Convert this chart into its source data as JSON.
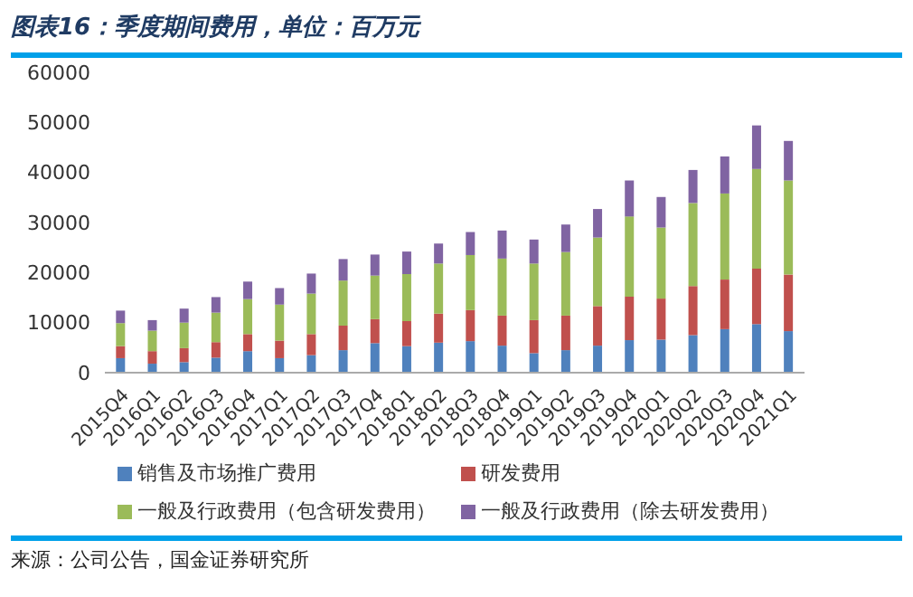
{
  "chart_data": {
    "type": "bar",
    "title": "图表16：季度期间费用，单位：百万元",
    "stacked": true,
    "legend": "bottom",
    "grid": false,
    "categories": [
      "2015Q4",
      "2016Q1",
      "2016Q2",
      "2016Q3",
      "2016Q4",
      "2017Q1",
      "2017Q2",
      "2017Q3",
      "2017Q4",
      "2018Q1",
      "2018Q2",
      "2018Q3",
      "2018Q4",
      "2019Q1",
      "2019Q2",
      "2019Q3",
      "2019Q4",
      "2020Q1",
      "2020Q2",
      "2020Q3",
      "2020Q4",
      "2021Q1"
    ],
    "series": [
      {
        "name": "销售及市场推广费用",
        "color": "#4f81bd",
        "values": [
          2900,
          1800,
          2100,
          3000,
          4300,
          2900,
          3500,
          4500,
          5900,
          5300,
          6000,
          6300,
          5400,
          3900,
          4500,
          5400,
          6500,
          6600,
          7500,
          8700,
          9700,
          8300
        ]
      },
      {
        "name": "研发费用",
        "color": "#c0504d",
        "values": [
          2400,
          2500,
          2800,
          3100,
          3400,
          3500,
          4200,
          4900,
          4800,
          5000,
          5800,
          6200,
          6000,
          6600,
          6900,
          7900,
          8700,
          8200,
          9800,
          9900,
          11100,
          11300
        ]
      },
      {
        "name": "一般及行政费用（包含研发费用）",
        "color": "#9bbb59",
        "values": [
          4600,
          4100,
          5100,
          5900,
          7000,
          7200,
          8100,
          9000,
          8700,
          9400,
          10000,
          11000,
          11400,
          11300,
          12700,
          13700,
          16000,
          14200,
          16600,
          17200,
          19900,
          18800
        ]
      },
      {
        "name": "一般及行政费用（除去研发费用）",
        "color": "#8064a2",
        "values": [
          2500,
          2100,
          2800,
          3100,
          3500,
          3300,
          4000,
          4300,
          4200,
          4500,
          4000,
          4600,
          5600,
          4800,
          5500,
          5700,
          7200,
          6100,
          6600,
          7400,
          8700,
          7900
        ]
      }
    ],
    "ylim": [
      0,
      60000
    ],
    "yticks": [
      0,
      10000,
      20000,
      30000,
      40000,
      50000,
      60000
    ],
    "annotations": [
      "来源：公司公告，国金证券研究所"
    ]
  }
}
